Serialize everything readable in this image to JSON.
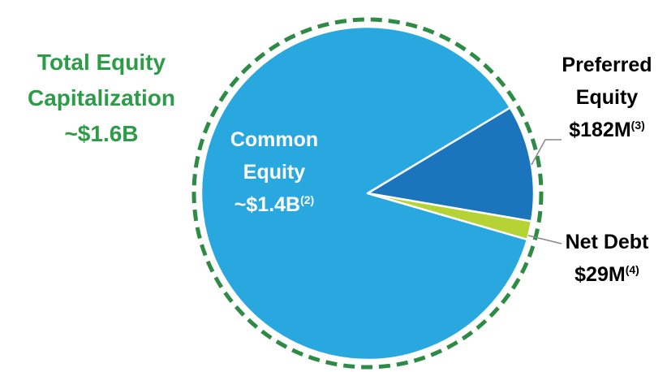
{
  "chart_data": {
    "type": "pie",
    "title": "Total Equity Capitalization",
    "subtitle": "~$1.6B",
    "categories": [
      "Common Equity",
      "Preferred Equity",
      "Net Debt"
    ],
    "values": [
      1400000000,
      182000000,
      29000000
    ],
    "value_labels": [
      "~$1.4B",
      "$182M",
      "$29M"
    ],
    "footnote_refs": [
      "(2)",
      "(3)",
      "(4)"
    ],
    "colors": [
      "#29a8e0",
      "#1b75bc",
      "#b5d334"
    ]
  }
}
